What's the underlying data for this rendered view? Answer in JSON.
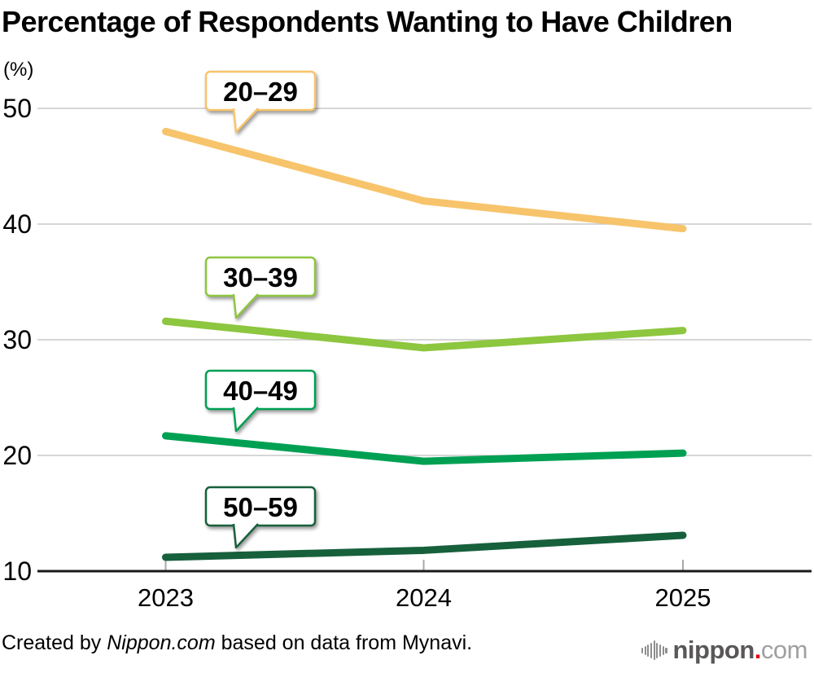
{
  "title": "Percentage of Respondents Wanting to Have Children",
  "unit_label": "(%)",
  "footer": {
    "prefix": "Created by ",
    "source_name": "Nippon.com",
    "suffix": " based on data from Mynavi."
  },
  "logo": {
    "icon": "soundwave-bars-icon",
    "name": "nippon",
    "dot": ".",
    "tld": "com"
  },
  "colors": {
    "background": "#ffffff",
    "title_text": "#000000",
    "gridline": "#c8c8c8",
    "axis": "#1a1a1a",
    "tick": "#a8a8a8",
    "bubble_fill": "#ffffff",
    "logo_gray": "#595757",
    "logo_red": "#e60012",
    "logo_light_gray": "#9fa0a0"
  },
  "chart_data": {
    "type": "line",
    "title": "Percentage of Respondents Wanting to Have Children",
    "xlabel": "",
    "ylabel": "(%)",
    "x": [
      "2023",
      "2024",
      "2025"
    ],
    "series": [
      {
        "name": "20–29",
        "values": [
          48.0,
          42.0,
          39.6
        ],
        "color": "#f7c46b"
      },
      {
        "name": "30–39",
        "values": [
          31.6,
          29.3,
          30.8
        ],
        "color": "#8dc63f"
      },
      {
        "name": "40–49",
        "values": [
          21.7,
          19.5,
          20.2
        ],
        "color": "#00a053"
      },
      {
        "name": "50–59",
        "values": [
          11.2,
          11.8,
          13.1
        ],
        "color": "#17603c"
      }
    ],
    "ylim": [
      10,
      52
    ],
    "yticks": [
      10,
      20,
      30,
      40,
      50
    ],
    "grid": true,
    "legend": "callout-bubbles-above-each-line"
  }
}
